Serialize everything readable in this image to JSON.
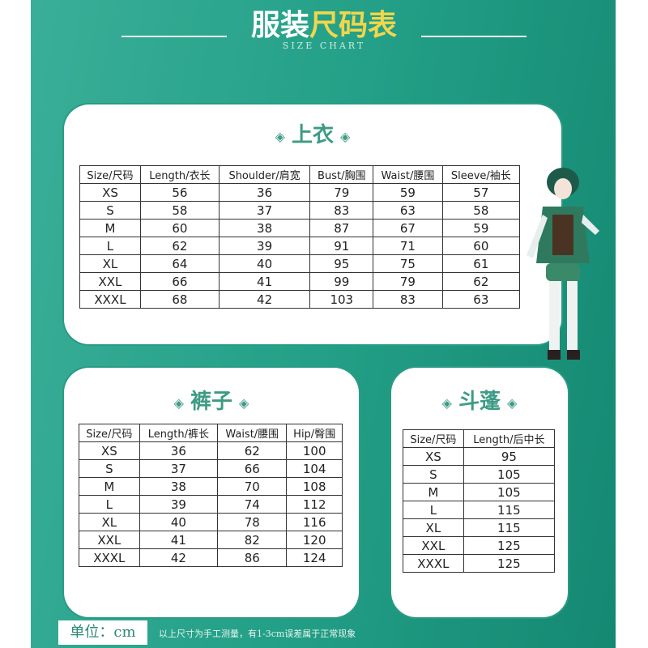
{
  "header": {
    "title_white": "服装",
    "title_yellow": "尺码表",
    "subtitle": "SIZE CHART"
  },
  "tops": {
    "title": "上衣",
    "headers": [
      "Size/尺码",
      "Length/衣长",
      "Shoulder/肩宽",
      "Bust/胸围",
      "Waist/腰围",
      "Sleeve/袖长"
    ],
    "rows": [
      [
        "XS",
        "56",
        "36",
        "79",
        "59",
        "57"
      ],
      [
        "S",
        "58",
        "37",
        "83",
        "63",
        "58"
      ],
      [
        "M",
        "60",
        "38",
        "87",
        "67",
        "59"
      ],
      [
        "L",
        "62",
        "39",
        "91",
        "71",
        "60"
      ],
      [
        "XL",
        "64",
        "40",
        "95",
        "75",
        "61"
      ],
      [
        "XXL",
        "66",
        "41",
        "99",
        "79",
        "62"
      ],
      [
        "XXXL",
        "68",
        "42",
        "103",
        "83",
        "63"
      ]
    ]
  },
  "pants": {
    "title": "裤子",
    "headers": [
      "Size/尺码",
      "Length/裤长",
      "Waist/腰围",
      "Hip/臀围"
    ],
    "rows": [
      [
        "XS",
        "36",
        "62",
        "100"
      ],
      [
        "S",
        "37",
        "66",
        "104"
      ],
      [
        "M",
        "38",
        "70",
        "108"
      ],
      [
        "L",
        "39",
        "74",
        "112"
      ],
      [
        "XL",
        "40",
        "78",
        "116"
      ],
      [
        "XXL",
        "41",
        "82",
        "120"
      ],
      [
        "XXXL",
        "42",
        "86",
        "124"
      ]
    ]
  },
  "cloak": {
    "title": "斗蓬",
    "headers": [
      "Size/尺码",
      "Length/后中长"
    ],
    "rows": [
      [
        "XS",
        "95"
      ],
      [
        "S",
        "105"
      ],
      [
        "M",
        "105"
      ],
      [
        "L",
        "115"
      ],
      [
        "XL",
        "115"
      ],
      [
        "XXL",
        "125"
      ],
      [
        "XXXL",
        "125"
      ]
    ]
  },
  "footer": {
    "unit": "单位：cm",
    "note": "以上尺寸为手工测量，有1-3cm误差属于正常现象"
  },
  "colors": {
    "accent": "#23a087",
    "title_yellow": "#f2d64b"
  }
}
